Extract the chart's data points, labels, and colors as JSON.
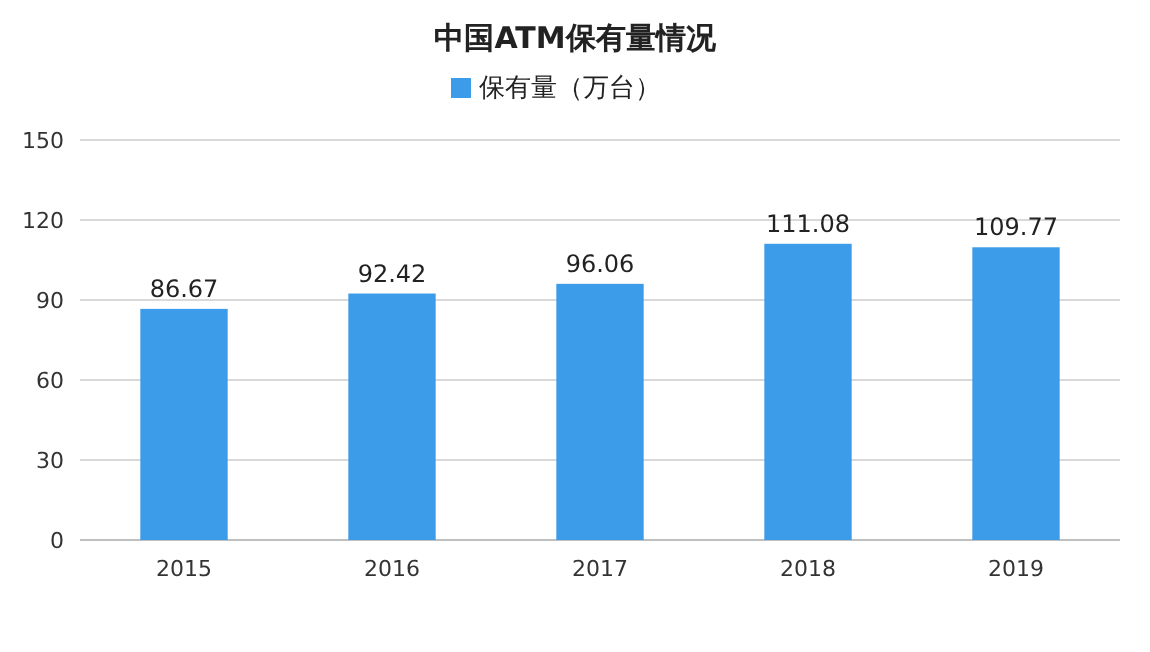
{
  "chart_data": {
    "type": "bar",
    "title": "中国ATM保有量情况",
    "categories": [
      "2015",
      "2016",
      "2017",
      "2018",
      "2019"
    ],
    "series": [
      {
        "name": "保有量（万台）",
        "color": "#3c9cea",
        "values": [
          86.67,
          92.42,
          96.06,
          111.08,
          109.77
        ]
      }
    ],
    "ylim": [
      0,
      150
    ],
    "yticks": [
      0,
      30,
      60,
      90,
      120,
      150
    ],
    "grid": "y",
    "legend": "top",
    "data_labels": true
  }
}
